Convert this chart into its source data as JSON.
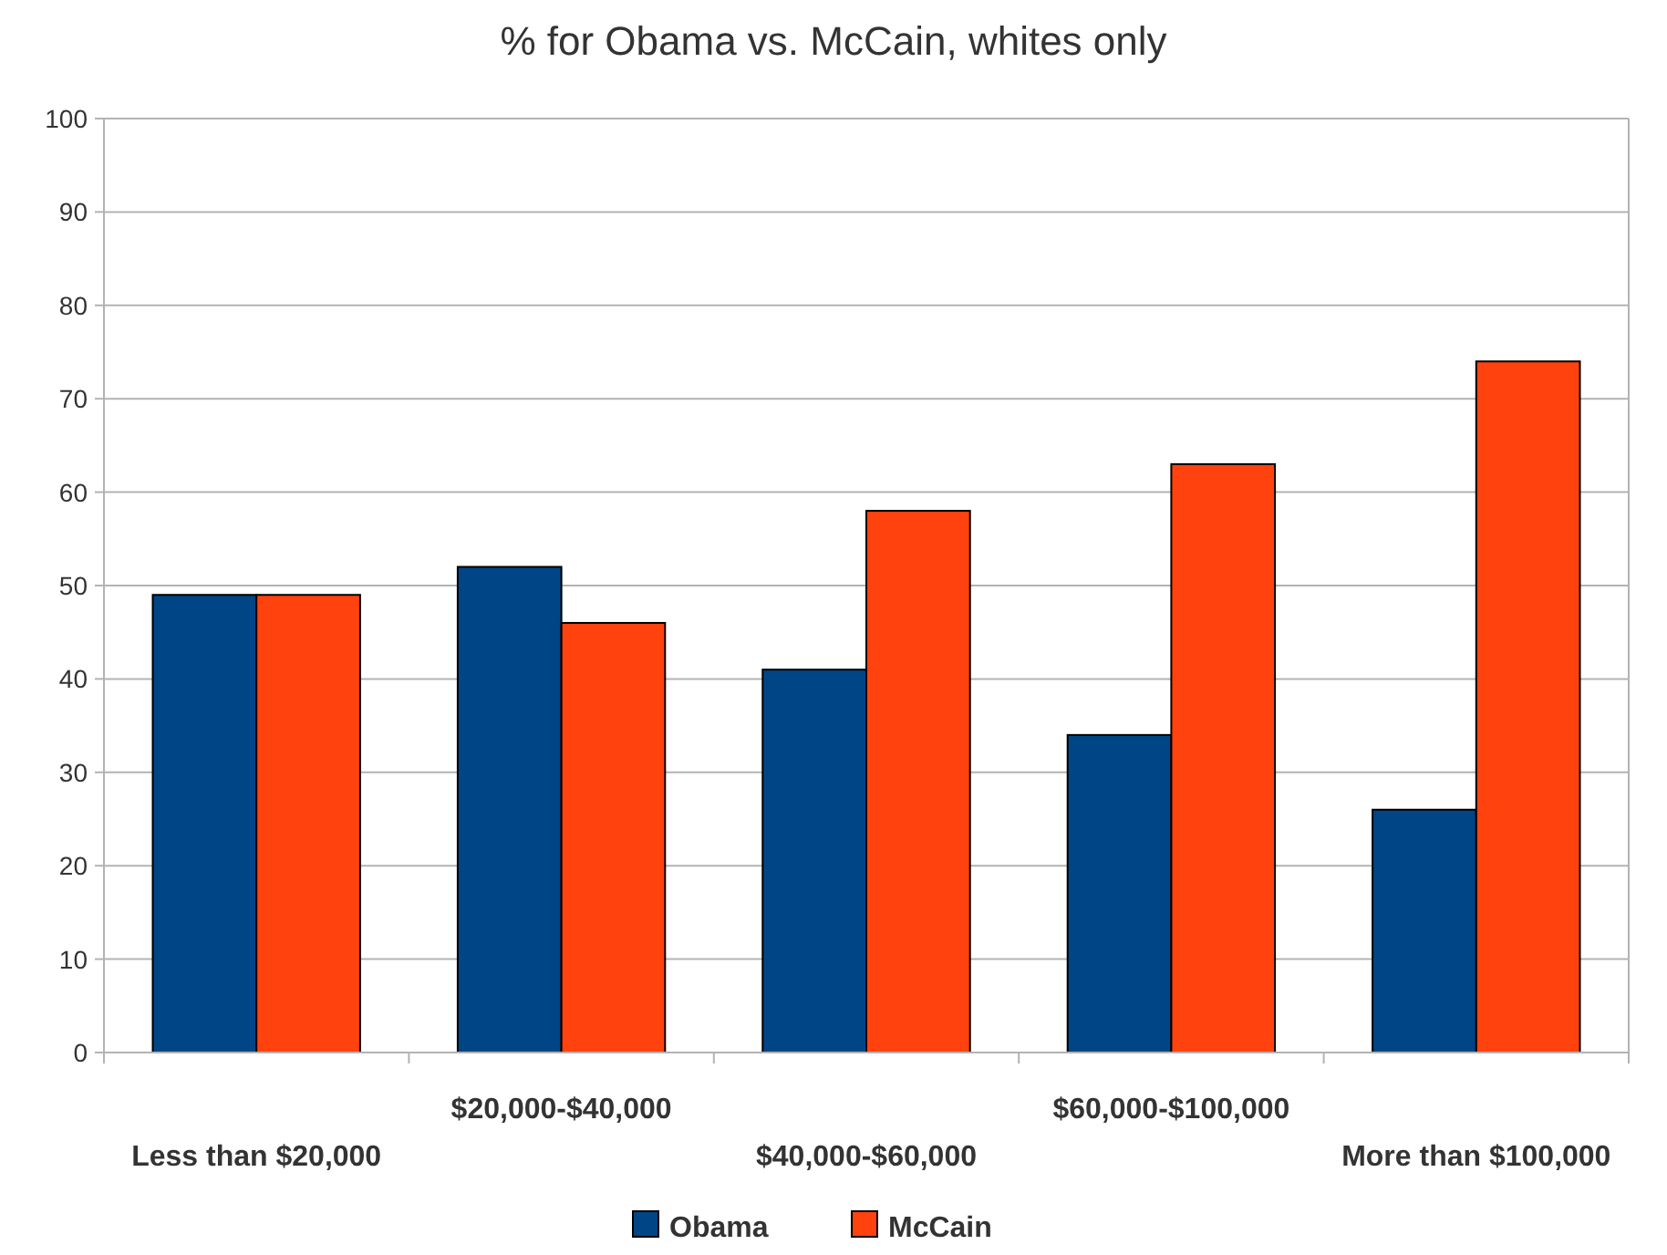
{
  "chart_data": {
    "type": "bar",
    "title": "% for Obama vs. McCain, whites only",
    "categories": [
      "Less than $20,000",
      "$20,000-$40,000",
      "$40,000-$60,000",
      "$60,000-$100,000",
      "More than $100,000"
    ],
    "series": [
      {
        "name": "Obama",
        "color": "#004586",
        "values": [
          49,
          52,
          41,
          34,
          26
        ]
      },
      {
        "name": "McCain",
        "color": "#ff420e",
        "values": [
          49,
          46,
          58,
          63,
          74
        ]
      }
    ],
    "ylim": [
      0,
      100
    ],
    "yticks": [
      0,
      10,
      20,
      30,
      40,
      50,
      60,
      70,
      80,
      90,
      100
    ],
    "grid": "y",
    "legend": "bottom"
  }
}
